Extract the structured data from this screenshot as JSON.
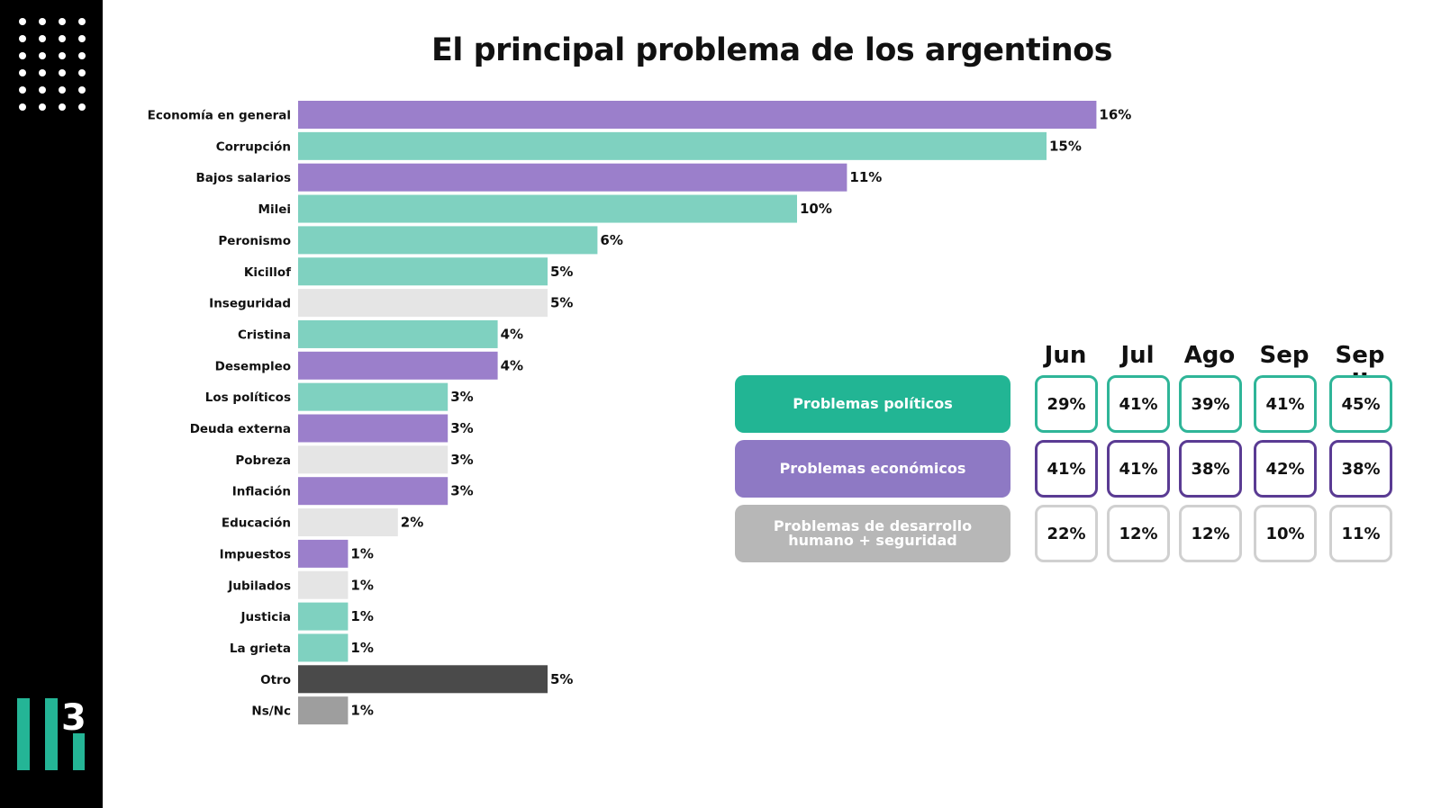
{
  "title": "El principal problema de los argentinos",
  "logo": {
    "text": "3"
  },
  "colors": {
    "economic": "#9b7fcb",
    "political": "#7fd1c0",
    "social": "#e5e5e5",
    "other": "#4a4a4a",
    "nsnc": "#9e9e9e",
    "brand": "#24b596"
  },
  "chart_data": {
    "type": "bar",
    "orientation": "horizontal",
    "title": "El principal problema de los argentinos",
    "categories": [
      "Economía en general",
      "Corrupción",
      "Bajos salarios",
      "Milei",
      "Peronismo",
      "Kicillof",
      "Inseguridad",
      "Cristina",
      "Desempleo",
      "Los políticos",
      "Deuda externa",
      "Pobreza",
      "Inflación",
      "Educación",
      "Impuestos",
      "Jubilados",
      "Justicia",
      "La grieta",
      "Otro",
      "Ns/Nc"
    ],
    "values": [
      16,
      15,
      11,
      10,
      6,
      5,
      5,
      4,
      4,
      3,
      3,
      3,
      3,
      2,
      1,
      1,
      1,
      1,
      5,
      1
    ],
    "labels": [
      "16%",
      "15%",
      "11%",
      "10%",
      "6%",
      "5%",
      "5%",
      "4%",
      "4%",
      "3%",
      "3%",
      "3%",
      "3%",
      "2%",
      "1%",
      "1%",
      "1%",
      "1%",
      "5%",
      "1%"
    ],
    "groups": [
      "economic",
      "political",
      "economic",
      "political",
      "political",
      "political",
      "social",
      "political",
      "economic",
      "political",
      "economic",
      "social",
      "economic",
      "social",
      "economic",
      "social",
      "political",
      "political",
      "other",
      "nsnc"
    ],
    "xlim": [
      0,
      16
    ],
    "grid": false
  },
  "table": {
    "months": [
      "Jun",
      "Jul",
      "Ago",
      "Sep",
      "Sep II"
    ],
    "rows": [
      {
        "label": "Problemas políticos",
        "color": "#22b594",
        "border": "#2fb598",
        "values": [
          "29%",
          "41%",
          "39%",
          "41%",
          "45%"
        ]
      },
      {
        "label": "Problemas económicos",
        "color": "#8e79c4",
        "border": "#5a3b93",
        "values": [
          "41%",
          "41%",
          "38%",
          "42%",
          "38%"
        ]
      },
      {
        "label": "Problemas de desarrollo humano + seguridad",
        "color": "#b7b7b7",
        "border": "#d0d0d0",
        "values": [
          "22%",
          "12%",
          "12%",
          "10%",
          "11%"
        ]
      }
    ]
  }
}
